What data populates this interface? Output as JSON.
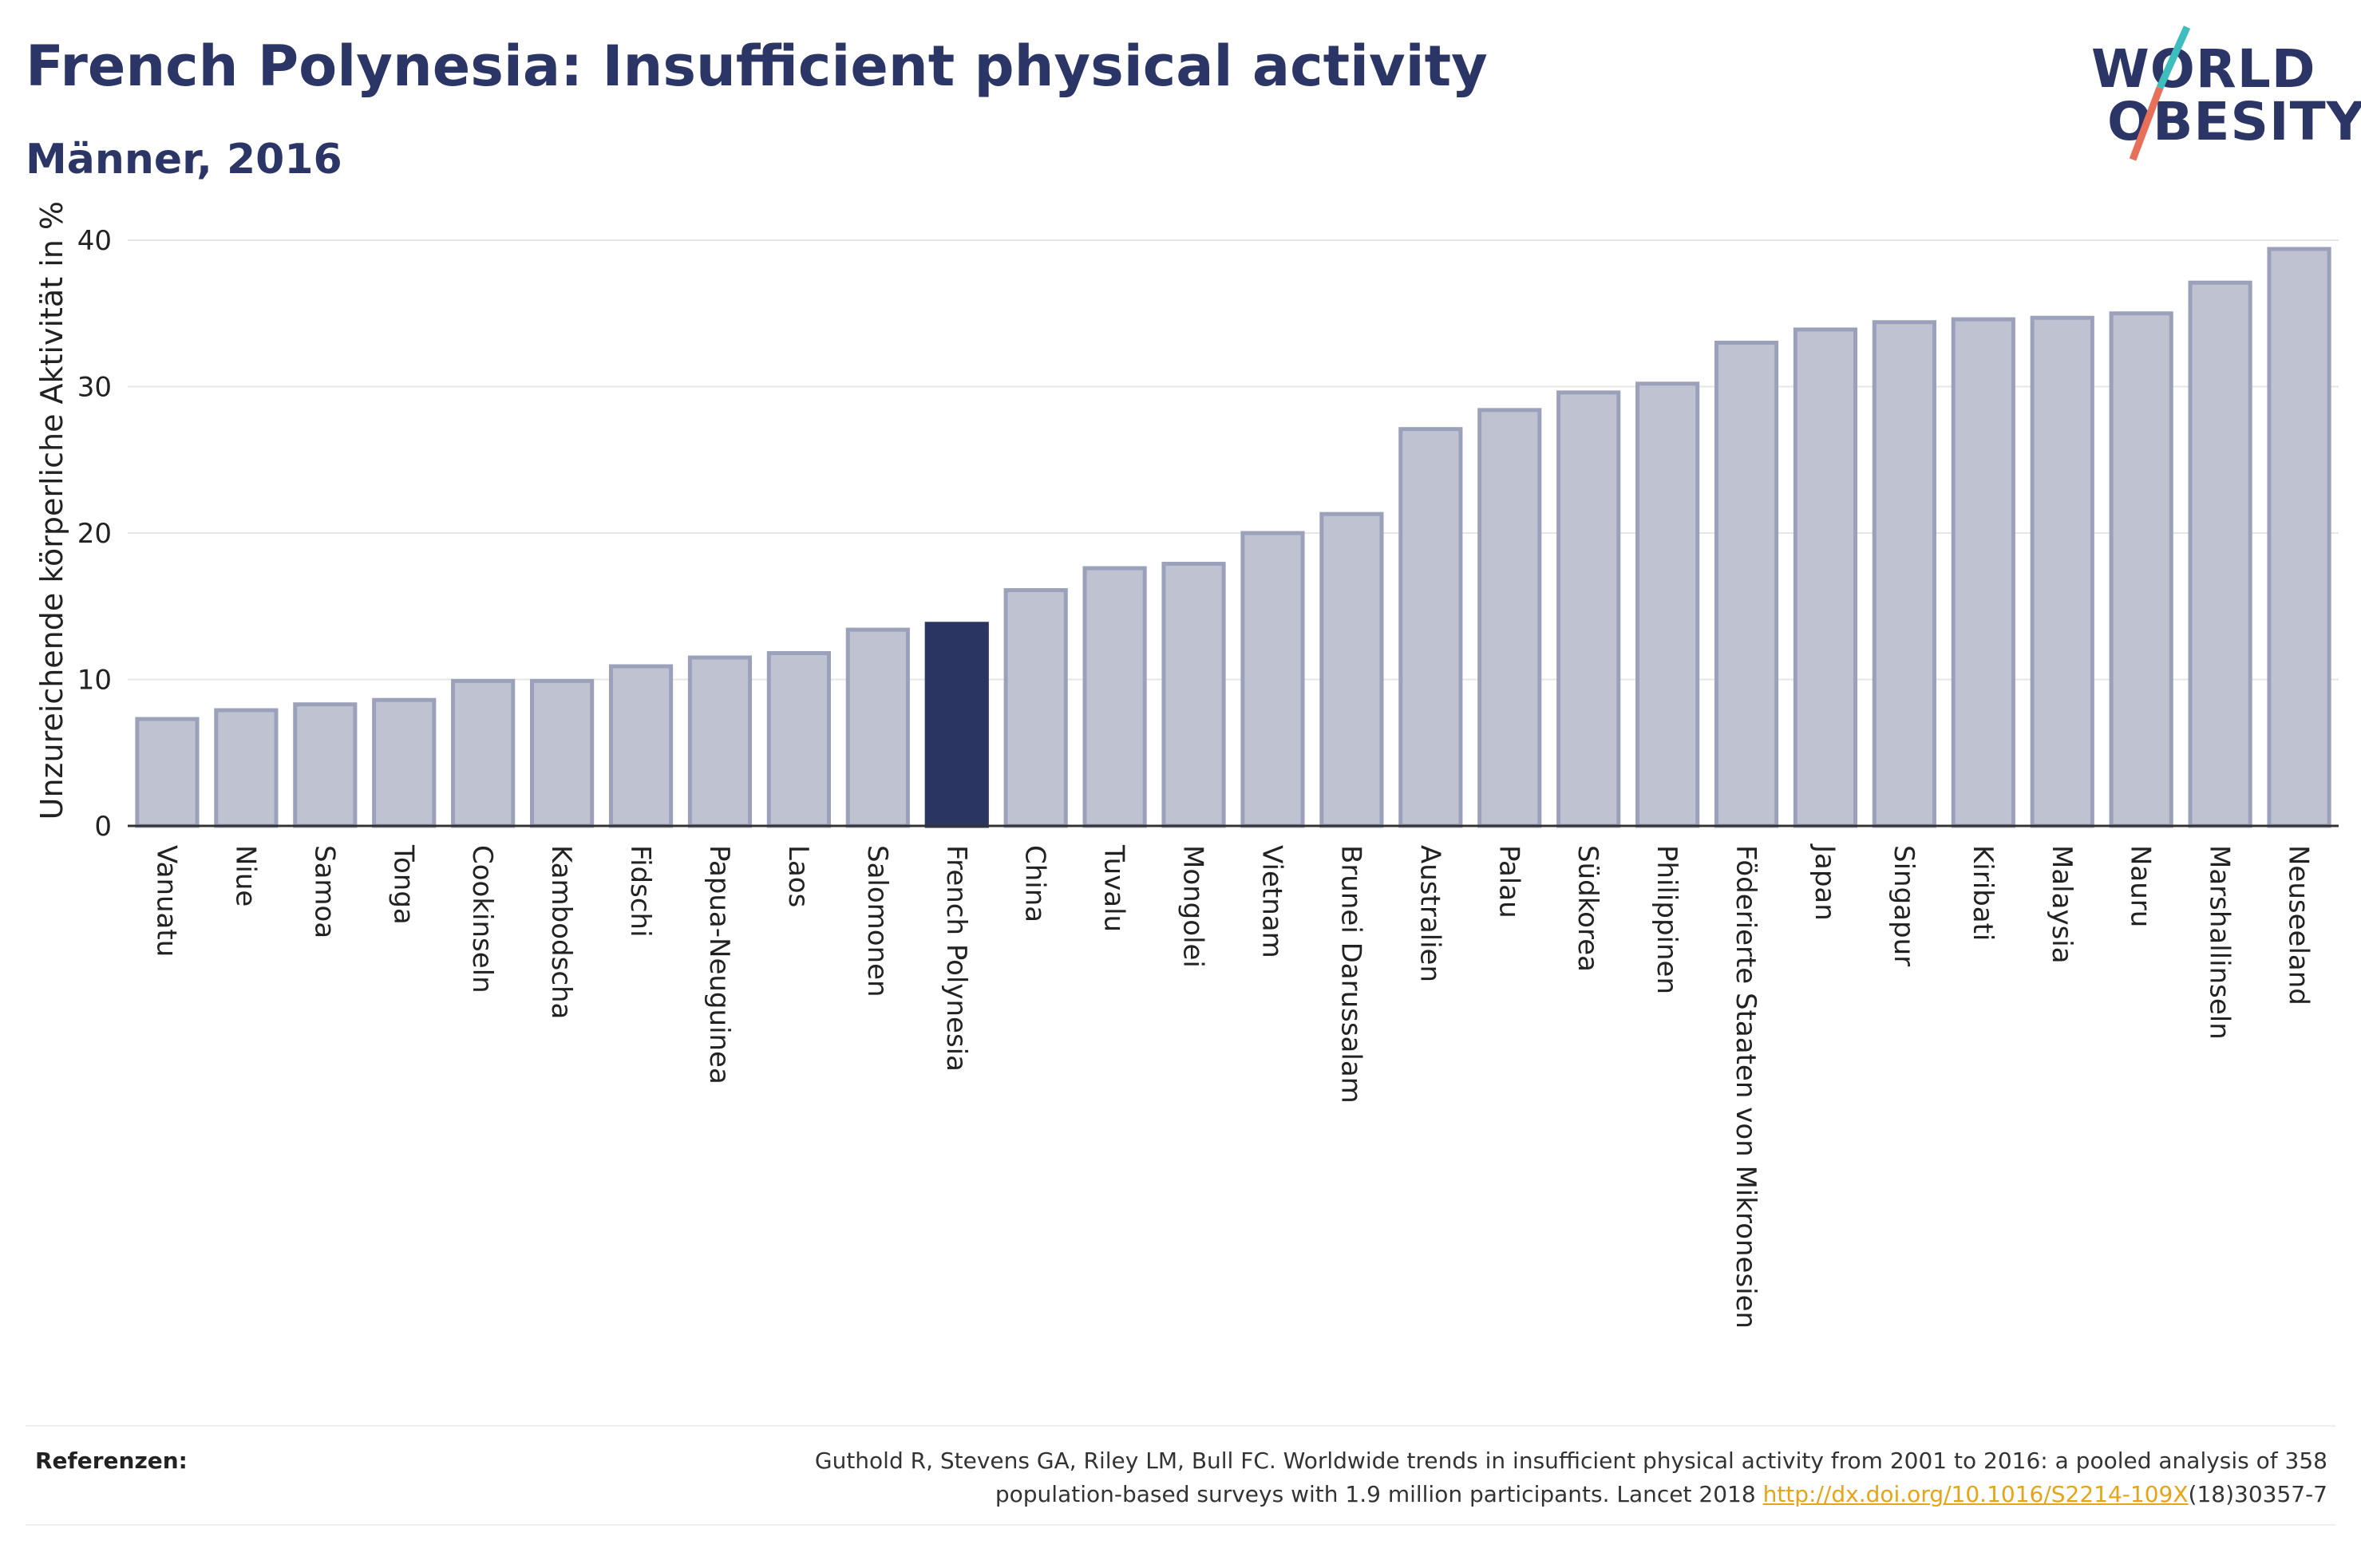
{
  "header": {
    "title": "French Polynesia: Insufficient physical activity",
    "subtitle": "Männer, 2016"
  },
  "logo": {
    "line1": "WORLD",
    "line2": "OBESITY",
    "colors": {
      "text": "#2b3566",
      "slash_top": "#3dbdbd",
      "slash_bottom": "#e8705a"
    }
  },
  "colors": {
    "bar": "#bfc3d1",
    "bar_stroke": "#9ca1bb",
    "highlight": "#2b3561",
    "axis": "#333333",
    "grid": "#e6e6e6"
  },
  "chart_data": {
    "type": "bar",
    "title": "French Polynesia: Insufficient physical activity",
    "subtitle": "Männer, 2016",
    "xlabel": "",
    "ylabel": "Unzureichende körperliche Aktivität in %",
    "ylim": [
      0,
      42
    ],
    "yticks": [
      0,
      10,
      20,
      30,
      40
    ],
    "grid": true,
    "highlight": "French Polynesia",
    "categories": [
      "Vanuatu",
      "Niue",
      "Samoa",
      "Tonga",
      "Cookinseln",
      "Kambodscha",
      "Fidschi",
      "Papua-Neuguinea",
      "Laos",
      "Salomonen",
      "French Polynesia",
      "China",
      "Tuvalu",
      "Mongolei",
      "Vietnam",
      "Brunei Darussalam",
      "Australien",
      "Palau",
      "Südkorea",
      "Philippinen",
      "Föderierte Staaten von Mikronesien",
      "Japan",
      "Singapur",
      "Kiribati",
      "Malaysia",
      "Nauru",
      "Marshallinseln",
      "Neuseeland"
    ],
    "values": [
      7.3,
      7.9,
      8.3,
      8.6,
      9.9,
      9.9,
      10.9,
      11.5,
      11.8,
      13.4,
      13.8,
      16.1,
      17.6,
      17.9,
      20.0,
      21.3,
      27.1,
      28.4,
      29.6,
      30.2,
      33.0,
      33.9,
      34.4,
      34.6,
      34.7,
      35.0,
      37.1,
      39.4
    ]
  },
  "footer": {
    "ref_label": "Referenzen:",
    "ref_text_line1": "Guthold R, Stevens GA, Riley LM, Bull FC. Worldwide trends in insufficient physical activity from 2001 to 2016: a pooled analysis of 358",
    "ref_text_line2_pre": "population-based surveys with 1.9 million participants. Lancet 2018 ",
    "ref_link": "http://dx.doi.org/10.1016/S2214-109X",
    "ref_text_line2_post": "(18)30357-7"
  }
}
